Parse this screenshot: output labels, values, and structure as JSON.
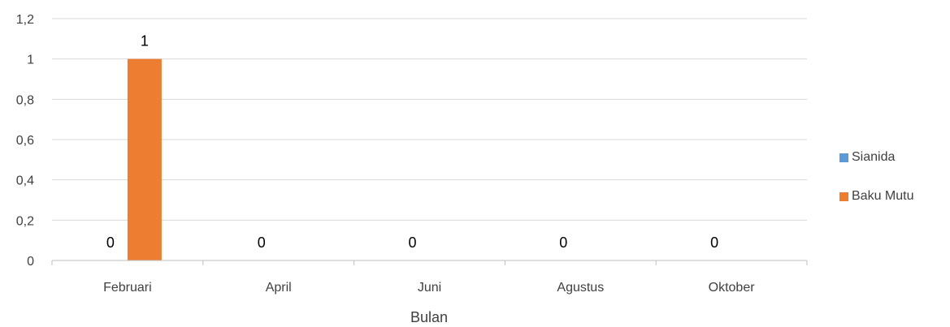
{
  "chart_data": {
    "type": "bar",
    "title": "",
    "xlabel": "Bulan",
    "ylabel": "",
    "categories": [
      "Februari",
      "April",
      "Juni",
      "Agustus",
      "Oktober"
    ],
    "series": [
      {
        "name": "Sianida",
        "color": "#5B9BD5",
        "values": [
          0,
          0,
          0,
          0,
          0
        ]
      },
      {
        "name": "Baku Mutu",
        "color": "#ED7D31",
        "values": [
          1,
          null,
          null,
          null,
          null
        ]
      }
    ],
    "data_labels": [
      "0",
      "1",
      "0",
      "0",
      "0",
      "0"
    ],
    "ylim": [
      0,
      1.2
    ],
    "yticks": [
      "0",
      "0,2",
      "0,4",
      "0,6",
      "0,8",
      "1",
      "1,2"
    ],
    "grid": true,
    "legend_position": "right"
  }
}
